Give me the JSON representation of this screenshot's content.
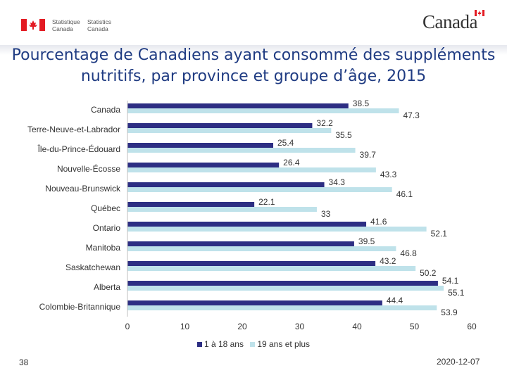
{
  "header": {
    "agency_fr_line1": "Statistique",
    "agency_fr_line2": "Canada",
    "agency_en_line1": "Statistics",
    "agency_en_line2": "Canada",
    "wordmark": "Canada"
  },
  "colors": {
    "series1": "#2d2e83",
    "series2": "#bfe2ea",
    "title": "#1f3b82",
    "flag_red": "#e31b23"
  },
  "chart_data": {
    "type": "bar",
    "orientation": "horizontal",
    "title": "Pourcentage de Canadiens ayant consommé des suppléments nutritifs, par province et groupe d’âge, 2015",
    "categories": [
      "Canada",
      "Terre-Neuve-et-Labrador",
      "Île-du-Prince-Édouard",
      "Nouvelle-Écosse",
      "Nouveau-Brunswick",
      "Québec",
      "Ontario",
      "Manitoba",
      "Saskatchewan",
      "Alberta",
      "Colombie-Britannique"
    ],
    "series": [
      {
        "name": "1 à 18 ans",
        "values": [
          38.5,
          32.2,
          25.4,
          26.4,
          34.3,
          22.1,
          41.6,
          39.5,
          43.2,
          54.1,
          44.4
        ]
      },
      {
        "name": "19 ans et plus",
        "values": [
          47.3,
          35.5,
          39.7,
          43.3,
          46.1,
          33,
          52.1,
          46.8,
          50.2,
          55.1,
          53.9
        ]
      }
    ],
    "xlim": [
      0,
      60
    ],
    "xticks": [
      "0",
      "10",
      "20",
      "30",
      "40",
      "50",
      "60"
    ],
    "grid": false,
    "legend_position": "bottom"
  },
  "footer": {
    "page_number": "38",
    "date": "2020-12-07"
  }
}
